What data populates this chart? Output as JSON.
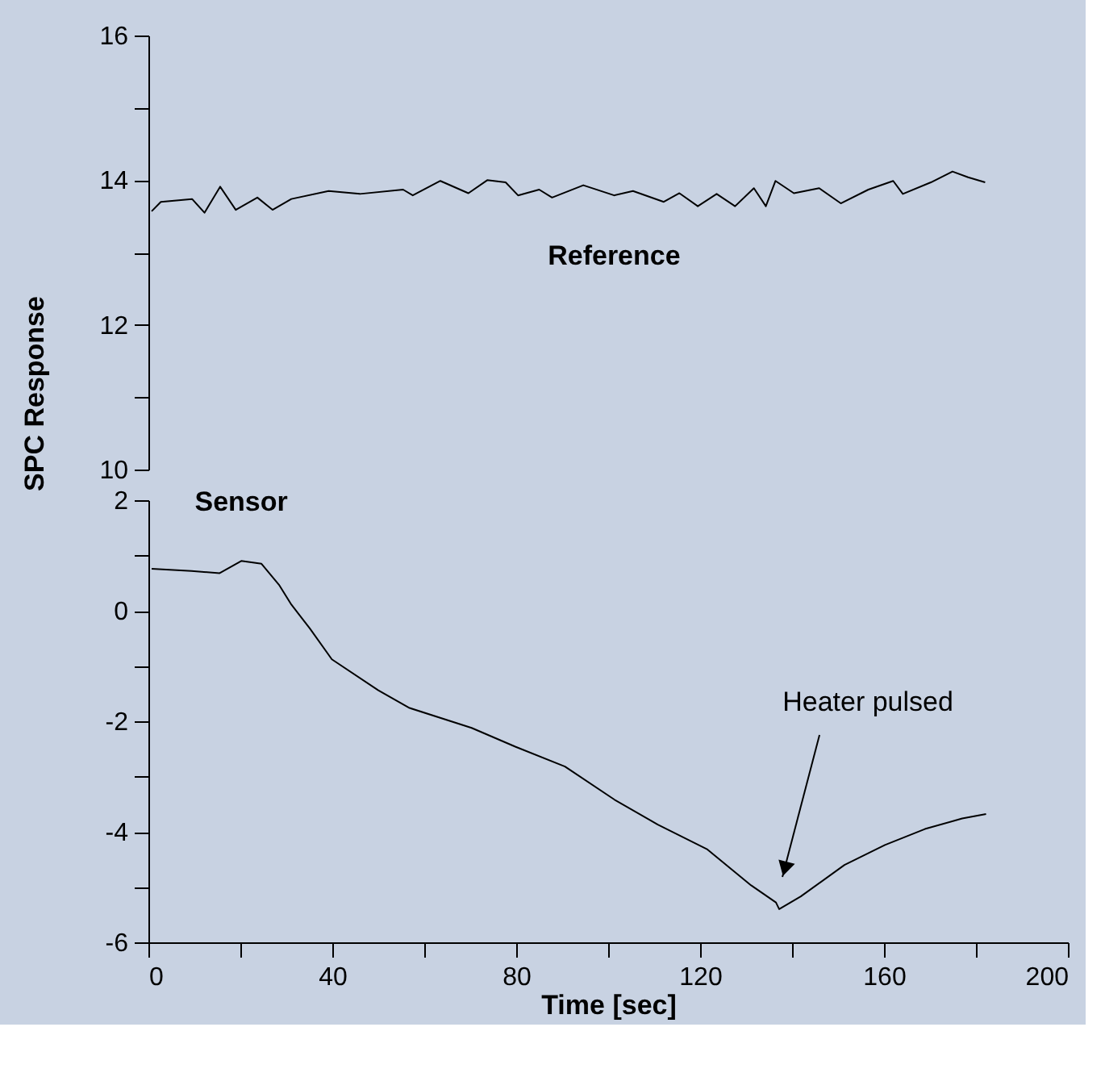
{
  "chart_data": [
    {
      "type": "line",
      "tick_labels": "y",
      "xlim": [
        0,
        200
      ],
      "ylim": [
        10,
        16
      ],
      "yticks": [
        10,
        {
          "value": 11,
          "label": null
        },
        12,
        {
          "value": 13,
          "label": null
        },
        14,
        {
          "value": 15,
          "label": null
        },
        16
      ],
      "grid": false,
      "legend": false,
      "marker": "none",
      "line_style": "solid",
      "series": [
        {
          "name": "Reference",
          "color": "#000000",
          "x": [
            0.7,
            2.7,
            9.5,
            12.2,
            15.6,
            19.0,
            23.7,
            27.0,
            31.1,
            39.2,
            46.0,
            55.4,
            57.5,
            63.5,
            69.6,
            73.7,
            77.7,
            80.4,
            85.0,
            87.8,
            94.6,
            101.3,
            105.4,
            112.1,
            115.5,
            119.5,
            123.6,
            127.6,
            131.7,
            134.3,
            136.4,
            140.4,
            145.9,
            150.6,
            156.6,
            162.0,
            164.1,
            170.2,
            174.9,
            178.3,
            182.0
          ],
          "values": [
            13.57,
            13.7,
            13.74,
            13.55,
            13.91,
            13.59,
            13.76,
            13.59,
            13.74,
            13.85,
            13.81,
            13.87,
            13.79,
            13.99,
            13.82,
            14.0,
            13.97,
            13.79,
            13.87,
            13.76,
            13.93,
            13.79,
            13.85,
            13.7,
            13.82,
            13.64,
            13.81,
            13.64,
            13.89,
            13.64,
            13.99,
            13.82,
            13.89,
            13.68,
            13.87,
            13.99,
            13.81,
            13.97,
            14.12,
            14.04,
            13.97
          ]
        }
      ]
    },
    {
      "type": "line",
      "xlim": [
        0,
        200
      ],
      "ylim": [
        -6,
        2
      ],
      "xticks": [
        0,
        {
          "value": 20,
          "label": null
        },
        40,
        {
          "value": 60,
          "label": null
        },
        80,
        {
          "value": 100,
          "label": null
        },
        120,
        {
          "value": 140,
          "label": null
        },
        160,
        {
          "value": 180,
          "label": null
        },
        200
      ],
      "yticks": [
        -6,
        {
          "value": -5,
          "label": null
        },
        -4,
        {
          "value": -3,
          "label": null
        },
        -2,
        {
          "value": -1,
          "label": null
        },
        0,
        {
          "value": 1,
          "label": null
        },
        2
      ],
      "xlabel": "Time [sec]",
      "ylabel": "SPC Response",
      "grid": false,
      "legend": false,
      "marker": "none",
      "line_style": "solid",
      "annotations": [
        "Heater pulsed"
      ],
      "series": [
        {
          "name": "Sensor",
          "color": "#000000",
          "x": [
            0.7,
            9.4,
            15.5,
            20.2,
            24.6,
            28.4,
            31.1,
            35.1,
            39.9,
            50.0,
            56.8,
            70.3,
            79.8,
            90.6,
            101.4,
            110.8,
            121.6,
            131.1,
            136.5,
            137.2,
            141.9,
            151.4,
            160.2,
            168.9,
            177.0,
            182.2
          ],
          "values": [
            0.76,
            0.72,
            0.68,
            0.9,
            0.85,
            0.47,
            0.11,
            -0.32,
            -0.88,
            -1.44,
            -1.76,
            -2.12,
            -2.46,
            -2.82,
            -3.42,
            -3.87,
            -4.32,
            -4.97,
            -5.28,
            -5.4,
            -5.17,
            -4.6,
            -4.24,
            -3.95,
            -3.76,
            -3.68
          ]
        }
      ]
    }
  ]
}
